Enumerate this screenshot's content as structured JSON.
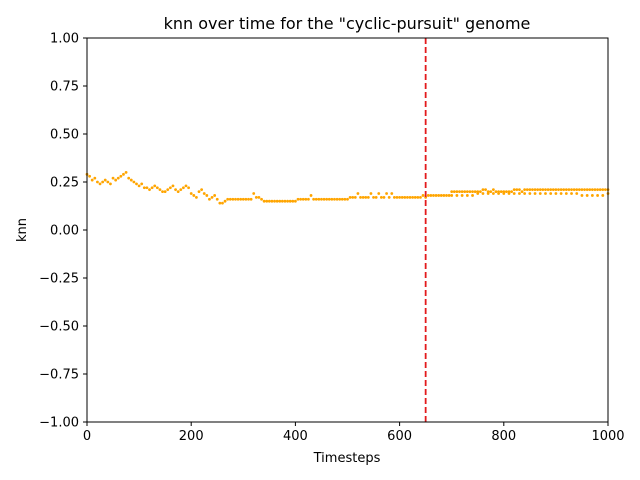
{
  "chart_data": {
    "type": "scatter",
    "title": "knn over time for the \"cyclic-pursuit\" genome",
    "xlabel": "Timesteps",
    "ylabel": "knn",
    "xlim": [
      0,
      1000
    ],
    "ylim": [
      -1.0,
      1.0
    ],
    "x_ticks": [
      "0",
      "200",
      "400",
      "600",
      "800",
      "1000"
    ],
    "y_ticks": [
      "−1.00",
      "−0.75",
      "−0.50",
      "−0.25",
      "0.00",
      "0.25",
      "0.50",
      "0.75",
      "1.00"
    ],
    "grid": false,
    "marker_color": "#ffa500",
    "vline": {
      "x": 650,
      "color": "#e31a1c",
      "style": "dashed"
    },
    "series": [
      {
        "points": [
          [
            0,
            0.29
          ],
          [
            5,
            0.28
          ],
          [
            10,
            0.26
          ],
          [
            15,
            0.27
          ],
          [
            20,
            0.25
          ],
          [
            25,
            0.24
          ],
          [
            30,
            0.25
          ],
          [
            35,
            0.26
          ],
          [
            40,
            0.25
          ],
          [
            45,
            0.24
          ],
          [
            50,
            0.27
          ],
          [
            55,
            0.26
          ],
          [
            60,
            0.27
          ],
          [
            65,
            0.28
          ],
          [
            70,
            0.29
          ],
          [
            75,
            0.3
          ],
          [
            80,
            0.27
          ],
          [
            85,
            0.26
          ],
          [
            90,
            0.25
          ],
          [
            95,
            0.24
          ],
          [
            100,
            0.23
          ],
          [
            105,
            0.24
          ],
          [
            110,
            0.22
          ],
          [
            115,
            0.22
          ],
          [
            120,
            0.21
          ],
          [
            125,
            0.22
          ],
          [
            130,
            0.23
          ],
          [
            135,
            0.22
          ],
          [
            140,
            0.21
          ],
          [
            145,
            0.2
          ],
          [
            150,
            0.2
          ],
          [
            155,
            0.21
          ],
          [
            160,
            0.22
          ],
          [
            165,
            0.23
          ],
          [
            170,
            0.21
          ],
          [
            175,
            0.2
          ],
          [
            180,
            0.21
          ],
          [
            185,
            0.22
          ],
          [
            190,
            0.23
          ],
          [
            195,
            0.22
          ],
          [
            200,
            0.19
          ],
          [
            205,
            0.18
          ],
          [
            210,
            0.17
          ],
          [
            215,
            0.2
          ],
          [
            220,
            0.21
          ],
          [
            225,
            0.19
          ],
          [
            230,
            0.18
          ],
          [
            235,
            0.16
          ],
          [
            240,
            0.17
          ],
          [
            245,
            0.18
          ],
          [
            250,
            0.16
          ],
          [
            255,
            0.14
          ],
          [
            260,
            0.14
          ],
          [
            265,
            0.15
          ],
          [
            270,
            0.16
          ],
          [
            275,
            0.16
          ],
          [
            280,
            0.16
          ],
          [
            285,
            0.16
          ],
          [
            290,
            0.16
          ],
          [
            295,
            0.16
          ],
          [
            300,
            0.16
          ],
          [
            305,
            0.16
          ],
          [
            310,
            0.16
          ],
          [
            315,
            0.16
          ],
          [
            320,
            0.19
          ],
          [
            325,
            0.17
          ],
          [
            330,
            0.17
          ],
          [
            335,
            0.16
          ],
          [
            340,
            0.15
          ],
          [
            345,
            0.15
          ],
          [
            350,
            0.15
          ],
          [
            355,
            0.15
          ],
          [
            360,
            0.15
          ],
          [
            365,
            0.15
          ],
          [
            370,
            0.15
          ],
          [
            375,
            0.15
          ],
          [
            380,
            0.15
          ],
          [
            385,
            0.15
          ],
          [
            390,
            0.15
          ],
          [
            395,
            0.15
          ],
          [
            400,
            0.15
          ],
          [
            405,
            0.16
          ],
          [
            410,
            0.16
          ],
          [
            415,
            0.16
          ],
          [
            420,
            0.16
          ],
          [
            425,
            0.16
          ],
          [
            430,
            0.18
          ],
          [
            435,
            0.16
          ],
          [
            440,
            0.16
          ],
          [
            445,
            0.16
          ],
          [
            450,
            0.16
          ],
          [
            455,
            0.16
          ],
          [
            460,
            0.16
          ],
          [
            465,
            0.16
          ],
          [
            470,
            0.16
          ],
          [
            475,
            0.16
          ],
          [
            480,
            0.16
          ],
          [
            485,
            0.16
          ],
          [
            490,
            0.16
          ],
          [
            495,
            0.16
          ],
          [
            500,
            0.16
          ],
          [
            505,
            0.17
          ],
          [
            510,
            0.17
          ],
          [
            515,
            0.17
          ],
          [
            520,
            0.19
          ],
          [
            525,
            0.17
          ],
          [
            530,
            0.17
          ],
          [
            535,
            0.17
          ],
          [
            540,
            0.17
          ],
          [
            545,
            0.19
          ],
          [
            550,
            0.17
          ],
          [
            555,
            0.17
          ],
          [
            560,
            0.19
          ],
          [
            565,
            0.17
          ],
          [
            570,
            0.17
          ],
          [
            575,
            0.19
          ],
          [
            580,
            0.17
          ],
          [
            585,
            0.19
          ],
          [
            590,
            0.17
          ],
          [
            595,
            0.17
          ],
          [
            600,
            0.17
          ],
          [
            605,
            0.17
          ],
          [
            610,
            0.17
          ],
          [
            615,
            0.17
          ],
          [
            620,
            0.17
          ],
          [
            625,
            0.17
          ],
          [
            630,
            0.17
          ],
          [
            635,
            0.17
          ],
          [
            640,
            0.17
          ],
          [
            645,
            0.18
          ],
          [
            650,
            0.17
          ],
          [
            655,
            0.18
          ],
          [
            660,
            0.18
          ],
          [
            665,
            0.18
          ],
          [
            670,
            0.18
          ],
          [
            675,
            0.18
          ],
          [
            680,
            0.18
          ],
          [
            685,
            0.18
          ],
          [
            690,
            0.18
          ],
          [
            695,
            0.18
          ],
          [
            700,
            0.2
          ],
          [
            705,
            0.2
          ],
          [
            710,
            0.2
          ],
          [
            715,
            0.2
          ],
          [
            720,
            0.2
          ],
          [
            725,
            0.2
          ],
          [
            730,
            0.2
          ],
          [
            735,
            0.2
          ],
          [
            740,
            0.2
          ],
          [
            745,
            0.2
          ],
          [
            750,
            0.2
          ],
          [
            755,
            0.2
          ],
          [
            760,
            0.21
          ],
          [
            765,
            0.21
          ],
          [
            770,
            0.2
          ],
          [
            775,
            0.2
          ],
          [
            780,
            0.21
          ],
          [
            785,
            0.2
          ],
          [
            790,
            0.2
          ],
          [
            795,
            0.2
          ],
          [
            800,
            0.2
          ],
          [
            805,
            0.2
          ],
          [
            810,
            0.2
          ],
          [
            815,
            0.2
          ],
          [
            820,
            0.21
          ],
          [
            825,
            0.21
          ],
          [
            830,
            0.21
          ],
          [
            835,
            0.2
          ],
          [
            840,
            0.21
          ],
          [
            845,
            0.21
          ],
          [
            850,
            0.21
          ],
          [
            855,
            0.21
          ],
          [
            860,
            0.21
          ],
          [
            865,
            0.21
          ],
          [
            870,
            0.21
          ],
          [
            875,
            0.21
          ],
          [
            880,
            0.21
          ],
          [
            885,
            0.21
          ],
          [
            890,
            0.21
          ],
          [
            895,
            0.21
          ],
          [
            900,
            0.21
          ],
          [
            905,
            0.21
          ],
          [
            910,
            0.21
          ],
          [
            915,
            0.21
          ],
          [
            920,
            0.21
          ],
          [
            925,
            0.21
          ],
          [
            930,
            0.21
          ],
          [
            935,
            0.21
          ],
          [
            940,
            0.21
          ],
          [
            945,
            0.21
          ],
          [
            950,
            0.21
          ],
          [
            955,
            0.21
          ],
          [
            960,
            0.21
          ],
          [
            965,
            0.21
          ],
          [
            970,
            0.21
          ],
          [
            975,
            0.21
          ],
          [
            980,
            0.21
          ],
          [
            985,
            0.21
          ],
          [
            990,
            0.21
          ],
          [
            995,
            0.21
          ],
          [
            1000,
            0.21
          ],
          [
            700,
            0.18
          ],
          [
            710,
            0.18
          ],
          [
            720,
            0.18
          ],
          [
            730,
            0.18
          ],
          [
            740,
            0.18
          ],
          [
            750,
            0.19
          ],
          [
            760,
            0.19
          ],
          [
            770,
            0.19
          ],
          [
            780,
            0.19
          ],
          [
            790,
            0.19
          ],
          [
            800,
            0.19
          ],
          [
            810,
            0.19
          ],
          [
            820,
            0.19
          ],
          [
            830,
            0.19
          ],
          [
            840,
            0.19
          ],
          [
            850,
            0.19
          ],
          [
            860,
            0.19
          ],
          [
            870,
            0.19
          ],
          [
            880,
            0.19
          ],
          [
            890,
            0.19
          ],
          [
            900,
            0.19
          ],
          [
            910,
            0.19
          ],
          [
            920,
            0.19
          ],
          [
            930,
            0.19
          ],
          [
            940,
            0.19
          ],
          [
            950,
            0.18
          ],
          [
            960,
            0.18
          ],
          [
            970,
            0.18
          ],
          [
            980,
            0.18
          ],
          [
            990,
            0.18
          ],
          [
            1000,
            0.19
          ]
        ]
      }
    ]
  }
}
